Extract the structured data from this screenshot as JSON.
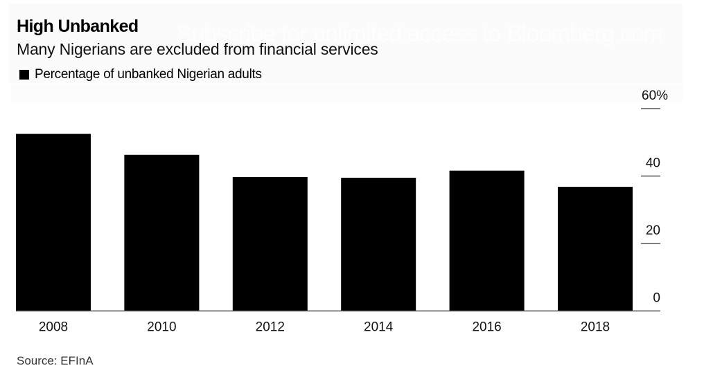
{
  "watermark": "Subscribe for unlimited access to Bloomberg.com",
  "colors": {
    "bar": "#000000",
    "axis": "#555555",
    "header_bg": "#fbfbfb"
  },
  "chart_data": {
    "type": "bar",
    "title": "High Unbanked",
    "subtitle": "Many Nigerians are excluded from financial services",
    "legend": [
      {
        "label": "Percentage of unbanked Nigerian adults",
        "color": "#000000"
      }
    ],
    "legend_position": "top-left",
    "categories": [
      "2008",
      "2010",
      "2012",
      "2014",
      "2016",
      "2018"
    ],
    "series": [
      {
        "name": "Percentage of unbanked Nigerian adults",
        "values": [
          52.5,
          46.3,
          39.7,
          39.5,
          41.6,
          36.8
        ]
      }
    ],
    "xlabel": "",
    "ylabel": "",
    "ylim": [
      0,
      60
    ],
    "yticks": [
      0,
      20,
      40,
      60
    ],
    "ytick_labels": [
      "0",
      "20",
      "40",
      "60%"
    ],
    "y_axis_side": "right",
    "grid": false,
    "source": "Source: EFInA"
  }
}
